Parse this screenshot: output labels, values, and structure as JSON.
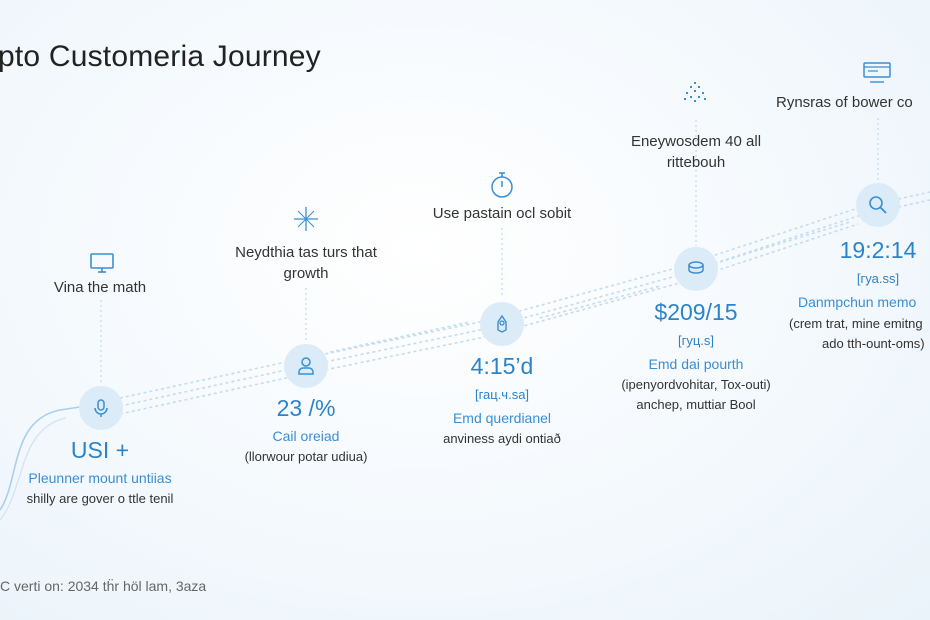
{
  "title": "pto Customeria Journey",
  "footer": "C verti on: 2034 tḧr höl lam, 3aza",
  "colors": {
    "accent": "#2b83c9",
    "circle": "#dcebf8",
    "line": "#bcd8ee",
    "text": "#333333"
  },
  "stages": [
    {
      "top_icon": "monitor-icon",
      "circle_icon": "microphone-icon",
      "top_label": [
        "Vina the math"
      ],
      "value": "USI +",
      "sub": "",
      "blue_text": "Pleunner mount untiias",
      "small_text": [
        "shilly are gover o ttle tenil"
      ]
    },
    {
      "top_icon": "sparkle-icon",
      "circle_icon": "person-icon",
      "top_label": [
        "Neydthia tas turs that",
        "growth"
      ],
      "value": "23 /%",
      "sub": "",
      "blue_text": "Cail oreiad",
      "small_text": [
        "(llorwour potar udiua)"
      ]
    },
    {
      "top_icon": "stopwatch-icon",
      "circle_icon": "hands-icon",
      "top_label": [
        "Use pastain ocl sobit"
      ],
      "value": "4:15’d",
      "sub": "[гац.ч.ѕа]",
      "blue_text": "Emd querdianel",
      "small_text": [
        "anviness aydi ontiað"
      ]
    },
    {
      "top_icon": "signal-icon",
      "circle_icon": "coins-icon",
      "top_label": [
        "Eneywosdem 40 all",
        "rittebouh"
      ],
      "value": "$209/15",
      "sub": "[гуц.ѕ]",
      "blue_text": "Emd dai pourth",
      "small_text": [
        "(ipenyordvohitar, Tox-outi)",
        "anchep, muttiar Bool"
      ]
    },
    {
      "top_icon": "window-icon",
      "circle_icon": "search-icon",
      "top_label": [
        "Rynsras of bower co"
      ],
      "value": "19:2:14",
      "sub": "[гуа.ѕѕ]",
      "blue_text": "Danmpchun memo",
      "small_text": [
        "(crem trat, mine emitng",
        "ado tth-ount-oms)"
      ]
    }
  ]
}
